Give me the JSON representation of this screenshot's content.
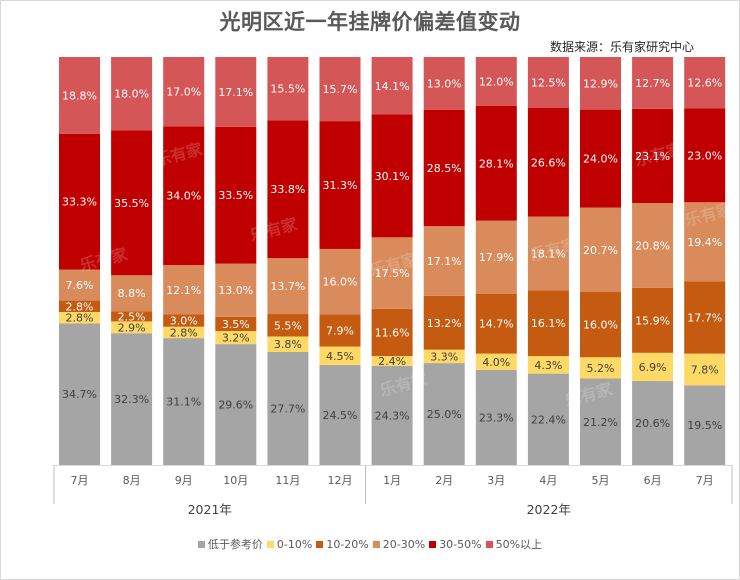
{
  "title": "光明区近一年挂牌价偏差值变动",
  "source": "数据来源：乐有家研究中心",
  "watermark": "乐有家",
  "chart_data": {
    "type": "bar",
    "stacked": true,
    "percent_stacked": true,
    "title": "光明区近一年挂牌价偏差值变动",
    "xlabel": "",
    "ylabel": "",
    "ylim": [
      0,
      100
    ],
    "grid": false,
    "legend_position": "bottom",
    "categories": [
      "7月",
      "8月",
      "9月",
      "10月",
      "11月",
      "12月",
      "1月",
      "2月",
      "3月",
      "4月",
      "5月",
      "6月",
      "7月"
    ],
    "groups": [
      {
        "label": "2021年",
        "count": 6
      },
      {
        "label": "2022年",
        "count": 7
      }
    ],
    "series": [
      {
        "name": "低于参考价",
        "color": "#a5a5a5",
        "label_color": "#404040",
        "values": [
          34.7,
          32.3,
          31.1,
          29.6,
          27.7,
          24.5,
          24.3,
          25.0,
          23.3,
          22.4,
          21.2,
          20.6,
          19.5
        ]
      },
      {
        "name": "0-10%",
        "color": "#ffd966",
        "label_color": "#404040",
        "values": [
          2.8,
          2.9,
          2.8,
          3.2,
          3.8,
          4.5,
          2.4,
          3.3,
          4.0,
          4.3,
          5.2,
          6.9,
          7.8
        ]
      },
      {
        "name": "10-20%",
        "color": "#c55a11",
        "label_color": "#ffffff",
        "values": [
          2.8,
          2.5,
          3.0,
          3.5,
          5.5,
          7.9,
          11.6,
          13.2,
          14.7,
          16.1,
          16.0,
          15.9,
          17.7
        ]
      },
      {
        "name": "20-30%",
        "color": "#d98b5c",
        "label_color": "#ffffff",
        "values": [
          7.6,
          8.8,
          12.1,
          13.0,
          13.7,
          16.0,
          17.5,
          17.1,
          17.9,
          18.1,
          20.7,
          20.8,
          19.4
        ]
      },
      {
        "name": "30-50%",
        "color": "#c00000",
        "label_color": "#ffffff",
        "values": [
          33.3,
          35.5,
          34.0,
          33.5,
          33.8,
          31.3,
          30.1,
          28.5,
          28.1,
          26.6,
          24.0,
          23.1,
          23.0
        ]
      },
      {
        "name": "50%以上",
        "color": "#d55656",
        "label_color": "#ffffff",
        "values": [
          18.8,
          18.0,
          17.0,
          17.1,
          15.5,
          15.7,
          14.1,
          13.0,
          12.0,
          12.5,
          12.9,
          12.7,
          12.6
        ]
      }
    ]
  }
}
